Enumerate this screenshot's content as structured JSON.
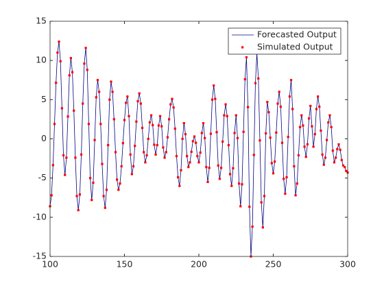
{
  "chart_data": {
    "type": "line",
    "x": [
      100,
      101,
      102,
      103,
      104,
      105,
      106,
      107,
      108,
      109,
      110,
      111,
      112,
      113,
      114,
      115,
      116,
      117,
      118,
      119,
      120,
      121,
      122,
      123,
      124,
      125,
      126,
      127,
      128,
      129,
      130,
      131,
      132,
      133,
      134,
      135,
      136,
      137,
      138,
      139,
      140,
      141,
      142,
      143,
      144,
      145,
      146,
      147,
      148,
      149,
      150,
      151,
      152,
      153,
      154,
      155,
      156,
      157,
      158,
      159,
      160,
      161,
      162,
      163,
      164,
      165,
      166,
      167,
      168,
      169,
      170,
      171,
      172,
      173,
      174,
      175,
      176,
      177,
      178,
      179,
      180,
      181,
      182,
      183,
      184,
      185,
      186,
      187,
      188,
      189,
      190,
      191,
      192,
      193,
      194,
      195,
      196,
      197,
      198,
      199,
      200,
      201,
      202,
      203,
      204,
      205,
      206,
      207,
      208,
      209,
      210,
      211,
      212,
      213,
      214,
      215,
      216,
      217,
      218,
      219,
      220,
      221,
      222,
      223,
      224,
      225,
      226,
      227,
      228,
      229,
      230,
      231,
      232,
      233,
      234,
      235,
      236,
      237,
      238,
      239,
      240,
      241,
      242,
      243,
      244,
      245,
      246,
      247,
      248,
      249,
      250,
      251,
      252,
      253,
      254,
      255,
      256,
      257,
      258,
      259,
      260,
      261,
      262,
      263,
      264,
      265,
      266,
      267,
      268,
      269,
      270,
      271,
      272,
      273,
      274,
      275,
      276,
      277,
      278,
      279,
      280,
      281,
      282,
      283,
      284,
      285,
      286,
      287,
      288,
      289,
      290,
      291,
      292,
      293,
      294,
      295,
      296,
      297,
      298,
      299,
      300
    ],
    "series": [
      {
        "name": "Forecasted Output",
        "color": "#00007f",
        "style": "line",
        "values": [
          -8.6,
          -7.2,
          -3.35,
          1.9,
          7.15,
          11.0,
          12.4,
          9.9,
          3.9,
          -2.1,
          -4.6,
          -2.4,
          2.85,
          8.1,
          10.3,
          8.5,
          3.6,
          -2.4,
          -7.3,
          -9.1,
          -7.1,
          -2.0,
          4.5,
          9.6,
          11.6,
          8.8,
          1.9,
          -5.0,
          -7.8,
          -5.6,
          -0.15,
          5.3,
          7.5,
          6.0,
          1.9,
          -3.2,
          -7.3,
          -8.8,
          -6.5,
          -0.8,
          5.0,
          7.3,
          6.0,
          2.5,
          -1.7,
          -5.2,
          -6.5,
          -5.7,
          -3.5,
          -0.55,
          2.4,
          4.6,
          5.4,
          2.9,
          -2.0,
          -4.5,
          -3.5,
          -0.9,
          2.2,
          4.8,
          5.8,
          4.5,
          1.4,
          -1.7,
          -3,
          -2.1,
          0,
          2.1,
          3,
          1.75,
          -0.75,
          -2,
          -0.8,
          1.7,
          2.9,
          1.6,
          -1.1,
          -2.4,
          -1.7,
          0.2,
          2.5,
          4.4,
          5.1,
          4.0,
          1.3,
          -2.2,
          -4.9,
          -6,
          -4,
          0,
          2,
          0.6,
          -2.2,
          -3.6,
          -3.0,
          -1.65,
          -0.3,
          0.3,
          -0.5,
          -2.2,
          -3,
          -1.75,
          0.75,
          2,
          0.1,
          -3.6,
          -5.5,
          -3.7,
          0.65,
          5.0,
          6.8,
          5.1,
          0.85,
          -3.4,
          -5.1,
          -3.7,
          -0.35,
          3.0,
          4.4,
          2.9,
          -0.8,
          -4.5,
          -6,
          -3.75,
          0.75,
          3,
          0.1,
          -5.7,
          -8.6,
          -5.8,
          0.9,
          7.6,
          10.4,
          4.05,
          -8.65,
          -15,
          -11.2,
          -2.05,
          7.1,
          10.9,
          7.7,
          -0.2,
          -8.1,
          -11.3,
          -7.3,
          0.7,
          4.7,
          3.4,
          0.15,
          -3.1,
          -4.4,
          -2.9,
          0.8,
          4.5,
          6,
          4.1,
          -0.5,
          -5.1,
          -7,
          -4.9,
          0.25,
          5.4,
          7.5,
          3.8,
          -3.5,
          -7.2,
          -5.7,
          -2.1,
          1.5,
          3,
          1.7,
          -1.0,
          -2.3,
          -0.7,
          2.6,
          4.2,
          1.6,
          -1,
          0.6,
          3.8,
          5.4,
          4.1,
          1.05,
          -2.0,
          -3.3,
          -2.4,
          -0.15,
          2.1,
          3,
          1.5,
          -1.5,
          -3,
          -2.4,
          -1.3,
          -0.7,
          -1.4,
          -2.7,
          -3.4,
          -3.6,
          -4.1,
          -4.3
        ]
      },
      {
        "name": "Simulated Output",
        "color": "#ff0000",
        "style": "markers",
        "values": [
          -8.6,
          -7.2,
          -3.35,
          1.9,
          7.15,
          11.0,
          12.4,
          9.9,
          3.9,
          -2.1,
          -4.6,
          -2.4,
          2.85,
          8.1,
          10.3,
          8.5,
          3.6,
          -2.4,
          -7.3,
          -9.1,
          -7.1,
          -2.0,
          4.5,
          9.6,
          11.6,
          8.8,
          1.9,
          -5.0,
          -7.8,
          -5.6,
          -0.15,
          5.3,
          7.5,
          6.0,
          1.9,
          -3.2,
          -7.3,
          -8.8,
          -6.5,
          -0.8,
          5.0,
          7.3,
          6.0,
          2.5,
          -1.7,
          -5.2,
          -6.5,
          -5.7,
          -3.5,
          -0.55,
          2.4,
          4.6,
          5.4,
          2.9,
          -2.0,
          -4.5,
          -3.5,
          -0.9,
          2.2,
          4.8,
          5.8,
          4.5,
          1.4,
          -1.7,
          -3,
          -2.1,
          0,
          2.1,
          3,
          1.75,
          -0.75,
          -2,
          -0.8,
          1.7,
          2.9,
          1.6,
          -1.1,
          -2.4,
          -1.7,
          0.2,
          2.5,
          4.4,
          5.1,
          4.0,
          1.3,
          -2.2,
          -4.9,
          -6,
          -4,
          0,
          2,
          0.6,
          -2.2,
          -3.6,
          -3.0,
          -1.65,
          -0.3,
          0.3,
          -0.5,
          -2.2,
          -3,
          -1.75,
          0.75,
          2,
          0.1,
          -3.6,
          -5.5,
          -3.7,
          0.65,
          5.0,
          6.8,
          5.1,
          0.85,
          -3.4,
          -5.1,
          -3.7,
          -0.35,
          3.0,
          4.4,
          2.9,
          -0.8,
          -4.5,
          -6,
          -3.75,
          0.75,
          3,
          0.1,
          -5.7,
          -8.6,
          -5.8,
          0.9,
          7.6,
          10.4,
          4.05,
          -8.65,
          -15,
          -11.2,
          -2.05,
          7.1,
          10.9,
          7.7,
          -0.2,
          -8.1,
          -11.3,
          -7.3,
          0.7,
          4.7,
          3.4,
          0.15,
          -3.1,
          -4.4,
          -2.9,
          0.8,
          4.5,
          6,
          4.1,
          -0.5,
          -5.1,
          -7,
          -4.9,
          0.25,
          5.4,
          7.5,
          3.8,
          -3.5,
          -7.2,
          -5.7,
          -2.1,
          1.5,
          3,
          1.7,
          -1.0,
          -2.3,
          -0.7,
          2.6,
          4.2,
          1.6,
          -1,
          0.6,
          3.8,
          5.4,
          4.1,
          1.05,
          -2.0,
          -3.3,
          -2.4,
          -0.15,
          2.1,
          3,
          1.5,
          -1.5,
          -3,
          -2.4,
          -1.3,
          -0.7,
          -1.4,
          -2.7,
          -3.4,
          -3.6,
          -4.1,
          -4.3
        ]
      }
    ],
    "xlim": [
      100,
      300
    ],
    "xticks": [
      100,
      150,
      200,
      250,
      300
    ],
    "ylim": [
      -15,
      15
    ],
    "yticks": [
      -15,
      -10,
      -5,
      0,
      5,
      10,
      15
    ],
    "grid": false,
    "legend": "northeast"
  }
}
